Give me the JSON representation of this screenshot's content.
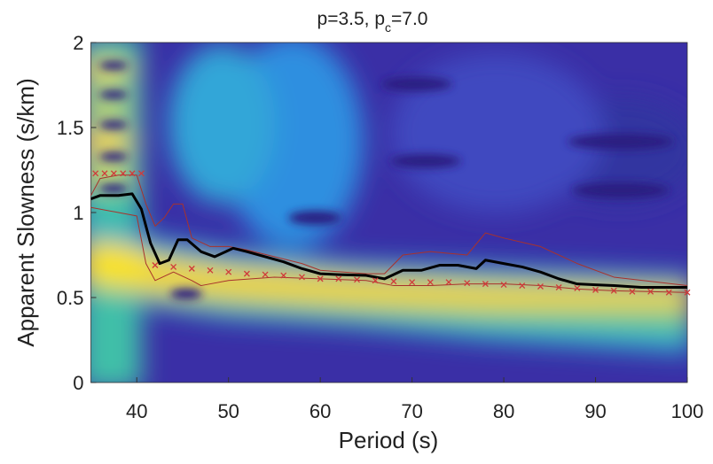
{
  "chart_data": {
    "type": "line",
    "title": [
      "p=3.5, p",
      "c",
      "=7.0"
    ],
    "xlabel": "Period (s)",
    "ylabel": "Apparent Slowness (s/km)",
    "xlim": [
      35,
      100
    ],
    "ylim": [
      0,
      2
    ],
    "xticks": [
      40,
      50,
      60,
      70,
      80,
      90,
      100
    ],
    "yticks": [
      0,
      0.5,
      1,
      1.5,
      2
    ],
    "series": [
      {
        "color": "#a8322c",
        "marker": "none",
        "linewidth": 1,
        "x": [
          35,
          36,
          38,
          40,
          41,
          42,
          43,
          44,
          45,
          46,
          48,
          50,
          52,
          55,
          58,
          60,
          65,
          67,
          69,
          72,
          74,
          76,
          78,
          80,
          84,
          88,
          92,
          100
        ],
        "values": [
          1.1,
          1.2,
          1.22,
          1.22,
          1.05,
          0.92,
          0.97,
          1.05,
          1.05,
          0.85,
          0.8,
          0.8,
          0.78,
          0.74,
          0.7,
          0.66,
          0.64,
          0.64,
          0.75,
          0.77,
          0.76,
          0.75,
          0.88,
          0.85,
          0.8,
          0.7,
          0.62,
          0.57
        ]
      },
      {
        "color": "#a8322c",
        "marker": "none",
        "linewidth": 1,
        "x": [
          35,
          38,
          40,
          41,
          42,
          44,
          46,
          47,
          50,
          55,
          60,
          65,
          68,
          72,
          76,
          80,
          84,
          88,
          92,
          100
        ],
        "values": [
          1.03,
          1.0,
          0.98,
          0.7,
          0.6,
          0.65,
          0.6,
          0.57,
          0.6,
          0.62,
          0.61,
          0.6,
          0.57,
          0.57,
          0.58,
          0.58,
          0.57,
          0.55,
          0.54,
          0.53
        ]
      },
      {
        "color": "#000000",
        "marker": "none",
        "linewidth": 3,
        "x": [
          35,
          36,
          38,
          39.5,
          40.5,
          41.5,
          42.5,
          43.5,
          44.5,
          45.5,
          47,
          48.5,
          50.5,
          52,
          54,
          56,
          58,
          60,
          62,
          65,
          67,
          69,
          71,
          73,
          75,
          77,
          78,
          80,
          82,
          84,
          86,
          88,
          90,
          92,
          95,
          100
        ],
        "values": [
          1.08,
          1.1,
          1.1,
          1.11,
          1.02,
          0.82,
          0.7,
          0.72,
          0.84,
          0.84,
          0.77,
          0.74,
          0.79,
          0.77,
          0.74,
          0.71,
          0.67,
          0.64,
          0.635,
          0.63,
          0.61,
          0.66,
          0.66,
          0.69,
          0.69,
          0.67,
          0.72,
          0.7,
          0.68,
          0.65,
          0.61,
          0.58,
          0.575,
          0.57,
          0.56,
          0.56
        ]
      },
      {
        "color": "#d03a3a",
        "marker": "x",
        "linewidth": 1,
        "x": [
          35.5,
          36.5,
          37.5,
          38.5,
          39.5,
          40.5,
          42,
          44,
          46,
          48,
          50,
          52,
          54,
          56,
          58,
          60,
          62,
          64,
          66,
          68,
          70,
          72,
          74,
          76,
          78,
          80,
          82,
          84,
          86,
          88,
          90,
          92,
          94,
          96,
          98,
          100
        ],
        "values": [
          1.23,
          1.23,
          1.23,
          1.23,
          1.23,
          1.23,
          0.69,
          0.68,
          0.67,
          0.66,
          0.65,
          0.64,
          0.635,
          0.63,
          0.62,
          0.61,
          0.61,
          0.605,
          0.6,
          0.595,
          0.59,
          0.59,
          0.59,
          0.585,
          0.58,
          0.575,
          0.57,
          0.565,
          0.56,
          0.555,
          0.545,
          0.54,
          0.535,
          0.535,
          0.53,
          0.53
        ]
      }
    ]
  }
}
